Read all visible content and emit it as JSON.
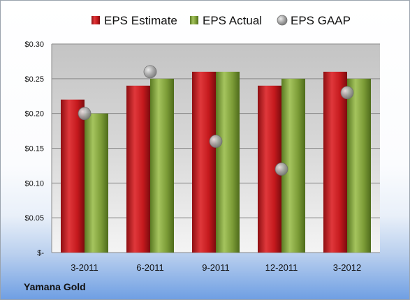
{
  "chart_data": {
    "type": "bar",
    "categories": [
      "3-2011",
      "6-2011",
      "9-2011",
      "12-2011",
      "3-2012"
    ],
    "series": [
      {
        "name": "EPS Estimate",
        "kind": "bar",
        "color": "#c0181c",
        "values": [
          0.22,
          0.24,
          0.26,
          0.24,
          0.26
        ]
      },
      {
        "name": "EPS Actual",
        "kind": "bar",
        "color": "#7fa039",
        "values": [
          0.2,
          0.25,
          0.26,
          0.25,
          0.25
        ]
      },
      {
        "name": "EPS GAAP",
        "kind": "marker",
        "color": "#a9a9a9",
        "values": [
          0.2,
          0.26,
          0.16,
          0.12,
          0.23
        ]
      }
    ],
    "yticks": [
      {
        "value": 0.0,
        "label": "$-"
      },
      {
        "value": 0.05,
        "label": "$0.05"
      },
      {
        "value": 0.1,
        "label": "$0.10"
      },
      {
        "value": 0.15,
        "label": "$0.15"
      },
      {
        "value": 0.2,
        "label": "$0.20"
      },
      {
        "value": 0.25,
        "label": "$0.25"
      },
      {
        "value": 0.3,
        "label": "$0.30"
      }
    ],
    "ylim": [
      0,
      0.3
    ],
    "grid": true,
    "legend_position": "top"
  },
  "company_name": "Yamana Gold"
}
